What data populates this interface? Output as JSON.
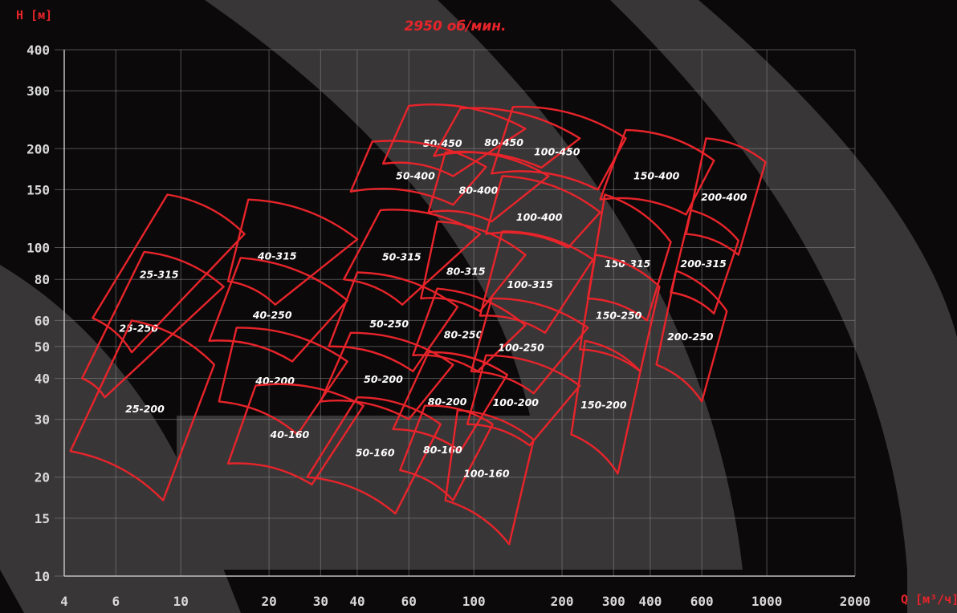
{
  "chart_data": {
    "type": "scatter",
    "title": "2950 об/мин.",
    "ylabel": "H [м]",
    "xlabel": "Q [м³/ч]",
    "x_scale": "log",
    "y_scale": "log",
    "xlim": [
      3.9,
      2300
    ],
    "ylim": [
      10,
      400
    ],
    "x_ticks": [
      4,
      6,
      10,
      20,
      30,
      40,
      60,
      100,
      200,
      300,
      400,
      600,
      1000,
      2000
    ],
    "x_tick_labels": [
      "4",
      "6",
      "10",
      "20",
      "30",
      "40",
      "60",
      "100",
      "200",
      "300",
      "400",
      "600",
      "1000",
      "2000"
    ],
    "y_ticks": [
      10,
      15,
      20,
      30,
      40,
      50,
      60,
      80,
      100,
      150,
      200,
      300,
      400
    ],
    "y_tick_labels": [
      "10",
      "15",
      "20",
      "30",
      "40",
      "50",
      "60",
      "80",
      "100",
      "150",
      "200",
      "300",
      "400"
    ],
    "grid": true,
    "accent_color": "#e8242b",
    "series": [
      {
        "name": "25-315",
        "corners": [
          [
            9,
            145
          ],
          [
            16.5,
            110
          ],
          [
            6.8,
            48
          ],
          [
            5,
            61
          ]
        ]
      },
      {
        "name": "25-250",
        "corners": [
          [
            7.5,
            97
          ],
          [
            14,
            76
          ],
          [
            5.5,
            35
          ],
          [
            4.6,
            40
          ]
        ]
      },
      {
        "name": "25-200",
        "corners": [
          [
            6.8,
            60
          ],
          [
            13,
            44
          ],
          [
            8.7,
            17
          ],
          [
            4.2,
            24
          ]
        ]
      },
      {
        "name": "40-315",
        "corners": [
          [
            17,
            140
          ],
          [
            40,
            106
          ],
          [
            21,
            67
          ],
          [
            14.5,
            79
          ]
        ]
      },
      {
        "name": "40-250",
        "corners": [
          [
            16,
            93
          ],
          [
            37,
            69
          ],
          [
            24,
            45
          ],
          [
            12.5,
            52
          ]
        ]
      },
      {
        "name": "40-200",
        "corners": [
          [
            15.5,
            57
          ],
          [
            37,
            45
          ],
          [
            25,
            27
          ],
          [
            13.5,
            34
          ]
        ]
      },
      {
        "name": "40-160",
        "corners": [
          [
            18,
            38
          ],
          [
            42,
            33
          ],
          [
            28,
            19
          ],
          [
            14.5,
            22
          ]
        ]
      },
      {
        "name": "50-450",
        "corners": [
          [
            60,
            270
          ],
          [
            150,
            230
          ],
          [
            85,
            165
          ],
          [
            49,
            180
          ]
        ]
      },
      {
        "name": "50-400",
        "corners": [
          [
            45,
            210
          ],
          [
            110,
            176
          ],
          [
            85,
            135
          ],
          [
            38,
            148
          ]
        ]
      },
      {
        "name": "50-315",
        "corners": [
          [
            48,
            130
          ],
          [
            105,
            110
          ],
          [
            57,
            67
          ],
          [
            36,
            80
          ]
        ]
      },
      {
        "name": "50-250",
        "corners": [
          [
            40,
            84
          ],
          [
            88,
            66
          ],
          [
            62,
            42
          ],
          [
            32,
            50
          ]
        ]
      },
      {
        "name": "50-200",
        "corners": [
          [
            38,
            55
          ],
          [
            85,
            44
          ],
          [
            60,
            30
          ],
          [
            30,
            34
          ]
        ]
      },
      {
        "name": "50-160",
        "corners": [
          [
            40,
            35
          ],
          [
            77,
            29
          ],
          [
            54,
            15.5
          ],
          [
            27,
            20
          ]
        ]
      },
      {
        "name": "80-450",
        "corners": [
          [
            90,
            265
          ],
          [
            230,
            215
          ],
          [
            170,
            175
          ],
          [
            73,
            190
          ]
        ]
      },
      {
        "name": "80-400",
        "corners": [
          [
            80,
            195
          ],
          [
            180,
            165
          ],
          [
            115,
            120
          ],
          [
            70,
            128
          ]
        ]
      },
      {
        "name": "80-315",
        "corners": [
          [
            75,
            120
          ],
          [
            150,
            95
          ],
          [
            105,
            64
          ],
          [
            66,
            70
          ]
        ]
      },
      {
        "name": "80-250",
        "corners": [
          [
            75,
            75
          ],
          [
            150,
            58
          ],
          [
            103,
            42
          ],
          [
            62,
            47
          ]
        ]
      },
      {
        "name": "80-200",
        "corners": [
          [
            70,
            48
          ],
          [
            130,
            41
          ],
          [
            90,
            24
          ],
          [
            53,
            28
          ]
        ]
      },
      {
        "name": "80-160",
        "corners": [
          [
            68,
            33
          ],
          [
            116,
            29
          ],
          [
            85,
            17
          ],
          [
            56,
            21
          ]
        ]
      },
      {
        "name": "100-450",
        "corners": [
          [
            136,
            268
          ],
          [
            330,
            215
          ],
          [
            265,
            150
          ],
          [
            115,
            168
          ]
        ]
      },
      {
        "name": "100-400",
        "corners": [
          [
            125,
            165
          ],
          [
            270,
            128
          ],
          [
            210,
            100
          ],
          [
            110,
            110
          ]
        ]
      },
      {
        "name": "100-315",
        "corners": [
          [
            125,
            112
          ],
          [
            255,
            92
          ],
          [
            175,
            55
          ],
          [
            105,
            62
          ]
        ]
      },
      {
        "name": "100-250",
        "corners": [
          [
            115,
            70
          ],
          [
            245,
            57
          ],
          [
            160,
            36
          ],
          [
            98,
            42
          ]
        ]
      },
      {
        "name": "100-200",
        "corners": [
          [
            110,
            47
          ],
          [
            230,
            38
          ],
          [
            155,
            25
          ],
          [
            95,
            29
          ]
        ]
      },
      {
        "name": "100-160",
        "corners": [
          [
            88,
            32
          ],
          [
            160,
            26
          ],
          [
            132,
            12.5
          ],
          [
            80,
            17
          ]
        ]
      },
      {
        "name": "150-400",
        "corners": [
          [
            330,
            228
          ],
          [
            660,
            184
          ],
          [
            530,
            126
          ],
          [
            270,
            140
          ]
        ]
      },
      {
        "name": "150-315",
        "corners": [
          [
            280,
            145
          ],
          [
            470,
            104
          ],
          [
            390,
            60
          ],
          [
            245,
            70
          ]
        ]
      },
      {
        "name": "150-250",
        "corners": [
          [
            260,
            95
          ],
          [
            430,
            76
          ],
          [
            370,
            42
          ],
          [
            230,
            49
          ]
        ]
      },
      {
        "name": "150-200",
        "corners": [
          [
            240,
            52
          ],
          [
            370,
            42
          ],
          [
            310,
            20.5
          ],
          [
            215,
            27
          ]
        ]
      },
      {
        "name": "200-400",
        "corners": [
          [
            620,
            215
          ],
          [
            990,
            182
          ],
          [
            800,
            95
          ],
          [
            530,
            110
          ]
        ]
      },
      {
        "name": "200-315",
        "corners": [
          [
            550,
            130
          ],
          [
            800,
            105
          ],
          [
            660,
            63
          ],
          [
            470,
            73
          ]
        ]
      },
      {
        "name": "200-250",
        "corners": [
          [
            490,
            85
          ],
          [
            730,
            64
          ],
          [
            600,
            34
          ],
          [
            420,
            44
          ]
        ]
      }
    ]
  }
}
